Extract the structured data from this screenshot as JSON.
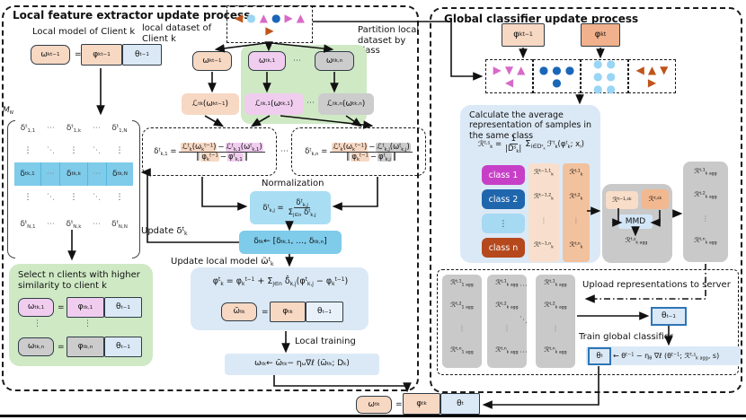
{
  "left_panel": {
    "title": "Local feature extractor update process",
    "local_model": {
      "label": "Local model of Client k",
      "omega": "ω<sub>k</sub><sup>t−1</sup>",
      "equals": "=",
      "phi": "φ<sub>k</sub><sup>t−1</sup>",
      "theta": "θ<sup>t−1</sup>"
    },
    "matrix": {
      "label": "M<sub>N</sub>",
      "rows": [
        [
          "δ<sup>t</sup><sub>1,1</sub>",
          "⋯",
          "δ<sup>t</sup><sub>1,k</sub>",
          "⋯",
          "δ<sup>t</sup><sub>1,N</sub>"
        ],
        [
          "⋮",
          "⋱",
          "⋮",
          "⋱",
          "⋮"
        ],
        [
          "δ<sup>t</sup><sub>k,1</sub>",
          "⋯",
          "δ<sup>t</sup><sub>k,k</sub>",
          "⋯",
          "δ<sup>t</sup><sub>k,N</sub>"
        ],
        [
          "⋮",
          "⋱",
          "⋮",
          "⋱",
          "⋮"
        ],
        [
          "δ<sup>t</sup><sub>N,1</sub>",
          "⋯",
          "δ<sup>t</sup><sub>N,k</sub>",
          "⋯",
          "δ<sup>t</sup><sub>N,N</sub>"
        ]
      ]
    },
    "select_box": {
      "text": "Select n clients with higher similarity to client k",
      "row1": {
        "omega": "ω<sup>t</sup><sub>k,1</sub>",
        "equals": "=",
        "phi": "φ<sup>t</sup><sub>k,1</sub>",
        "theta": "θ<sup>t−1</sup>"
      },
      "dots_a": "⋮",
      "dots_b": "⋮",
      "rown": {
        "omega": "ω<sup>t</sup><sub>k,n</sub>",
        "equals": "=",
        "phi": "φ<sup>t</sup><sub>k,n</sub>",
        "theta": "θ<sup>t−1</sup>"
      }
    },
    "dataset": {
      "label": "local dataset of Client k",
      "shapes": [
        {
          "g": "◀",
          "c": "#c0541a"
        },
        {
          "g": "●",
          "c": "#99d5f5"
        },
        {
          "g": "▲",
          "c": "#d76ac8"
        },
        {
          "g": "●",
          "c": "#1a66b8"
        },
        {
          "g": "▶",
          "c": "#d76ac8"
        },
        {
          "g": "▲",
          "c": "#d76ac8"
        },
        {
          "g": "▶",
          "c": "#c0541a"
        }
      ]
    },
    "partition_label": "Partition local dataset by class",
    "models_row": {
      "omega_k": "ω<sub>k</sub><sup>t−1</sup>",
      "omega_k1": "ω<sup>t</sup><sub>k,1</sub>",
      "dots": "⋯",
      "omega_kn": "ω<sup>t</sup><sub>k,n</sub>"
    },
    "loss_row": {
      "loss_k": "ℒ<sup>t</sup><sub>k</sub>(ω<sub>k</sub><sup>t−1</sup>)",
      "loss_k1": "ℒ<sup>t</sup><sub>k,1</sub>(ω<sup>t</sup><sub>k,1</sub>)",
      "dots": "⋯",
      "loss_kn": "ℒ<sup>t</sup><sub>k,n</sub>(ω<sup>t</sup><sub>k,n</sub>)"
    },
    "delta_box_1": {
      "lhs": "δ<sup>t</sup><sub>k,1</sub> =",
      "num_a": "ℒ<sup>t</sup><sub>k</sub>(ω<sub>k</sub><sup>t−1</sup>)",
      "minus": "−",
      "num_b": "ℒ<sup>t</sup><sub>k,1</sub>(ω<sup>t</sup><sub>k,1</sub>)",
      "den_open": "‖",
      "den_a": "φ<sub>k</sub><sup>t−1</sup>",
      "den_minus": "−",
      "den_b": "φ<sup>t</sup><sub>k,1</sub>",
      "den_close": "‖"
    },
    "delta_dots": "⋯",
    "delta_box_n": {
      "lhs": "δ<sup>t</sup><sub>k,n</sub> =",
      "num_a": "ℒ<sup>t</sup><sub>k</sub>(ω<sub>k</sub><sup>t−1</sup>)",
      "minus": "−",
      "num_b": "ℒ<sup>t</sup><sub>k,j</sub>(ω<sup>t</sup><sub>k,j</sub>)",
      "den_open": "‖",
      "den_a": "φ<sub>k</sub><sup>t−1</sup>",
      "den_minus": "−",
      "den_b": "φ<sup>t</sup><sub>k,j</sub>",
      "den_close": "‖"
    },
    "normalization": {
      "label": "Normalization",
      "lhs": "δ<sup>t</sup><sub>k,j</sub> =",
      "num": "δ<sup>t</sup><sub>k,j</sub>",
      "den": "Σ<sub>j∈n</sub> δ<sup>t</sup><sub>k,j</sub>"
    },
    "update_delta": {
      "label": "Update δ<sup>t</sup><sub>k</sub>",
      "formula": "δ<sup>t</sup><sub>k</sub> ← [δ<sup>t</sup><sub>k,1</sub>, …, δ<sup>t</sup><sub>k,n</sub>]"
    },
    "update_model": {
      "label": "Update local model ω̃<sup>t</sup><sub>k</sub>",
      "formula": "φ<sup>t</sup><sub>k</sub> = φ<sub>k</sub><sup>t−1</sup> + Σ<sub>j∈n</sub> δ̂<sub>k,j</sub>(φ<sup>t</sup><sub>k,j</sub> − φ<sub>k</sub><sup>t−1</sup>)",
      "omega": "ω̃<sup>t</sup><sub>k</sub>",
      "equals": "=",
      "phi": "φ<sup>t</sup><sub>k</sub>",
      "theta": "θ<sup>t−1</sup>"
    },
    "local_training": {
      "label": "Local training",
      "formula": "ω<sup>t</sup><sub>k</sub> ← ω̃<sup>t</sup><sub>k</sub> − η<sub>ω</sub> ∇ℓ (ω̃<sup>t</sup><sub>k</sub>; D<sub>k</sub>)"
    }
  },
  "right_panel": {
    "title": "Global classifier update process",
    "phi_prev": "φ<sub>k</sub><sup>t−1</sup>",
    "phi_t": "φ<sub>k</sub><sup>t</sup>",
    "partition_cells": [
      {
        "shapes": [
          {
            "g": "▶",
            "c": "#d76ac8"
          },
          {
            "g": "▼",
            "c": "#d76ac8"
          },
          {
            "g": "▲",
            "c": "#d76ac8"
          },
          {
            "g": "◀",
            "c": "#d76ac8"
          }
        ]
      },
      {
        "shapes": [
          {
            "g": "●",
            "c": "#1a66b8"
          },
          {
            "g": "●",
            "c": "#1a66b8"
          },
          {
            "g": "●",
            "c": "#1a66b8"
          },
          {
            "g": "●",
            "c": "#1a66b8"
          }
        ]
      },
      {
        "shapes": [
          {
            "g": "●",
            "c": "#99d5f5"
          },
          {
            "g": "●",
            "c": "#99d5f5"
          },
          {
            "g": "●",
            "c": "#99d5f5"
          },
          {
            "g": "●",
            "c": "#99d5f5"
          },
          {
            "g": "●",
            "c": "#99d5f5"
          },
          {
            "g": "●",
            "c": "#99d5f5"
          }
        ]
      },
      {
        "shapes": [
          {
            "g": "◀",
            "c": "#c0541a"
          },
          {
            "g": "▲",
            "c": "#c0541a"
          },
          {
            "g": "▼",
            "c": "#c0541a"
          },
          {
            "g": "▶",
            "c": "#c0541a"
          }
        ]
      }
    ],
    "calc_box": {
      "text": "Calculate the average representation of samples in the same class",
      "f_lhs": "ℛ<sup>t,s</sup><sub>k</sub> =",
      "f_num": "1",
      "f_den": "|D<sup>s</sup><sub>k</sub>|",
      "f_sum": "Σ<sub>i∈D<sup>s</sup><sub>k</sub></sub>",
      "f_rest": "ℱ<sup>t</sup><sub>k</sub>(φ<sup>t</sup><sub>k</sub>; x<sub>i</sub>)",
      "classes": [
        {
          "label": "class 1",
          "c": "#c73fc7",
          "r_prev": "ℛ<sup>t−1,1</sup><sub>k</sub>",
          "r_cur": "ℛ<sup>t,1</sup><sub>k</sub>"
        },
        {
          "label": "class 2",
          "c": "#1f66ad",
          "r_prev": "ℛ<sup>t−1,2</sup><sub>k</sub>",
          "r_cur": "ℛ<sup>t,2</sup><sub>k</sub>"
        },
        {
          "label": "⋮",
          "c": "#a6d9f2",
          "r_prev": "⋮",
          "r_cur": "⋮"
        },
        {
          "label": "class n",
          "c": "#b5491d",
          "r_prev": "ℛ<sup>t−1,n</sup><sub>k</sub>",
          "r_cur": "ℛ<sup>t,n</sup><sub>k</sub>"
        }
      ]
    },
    "mmd_box": {
      "r_prev": "ℛ<sup>t−1,s</sup><sub>k</sub>",
      "r_cur": "ℛ<sup>t,s</sup><sub>k</sub>",
      "mmd": "MMD",
      "r_agg": "ℛ<sup>t,s</sup><sub>k agg</sub>"
    },
    "agg_column": [
      "ℛ<sup>t,1</sup><sub>k agg</sub>",
      "ℛ<sup>t,2</sup><sub>k agg</sub>",
      "⋮",
      "ℛ<sup>t,n</sup><sub>k agg</sub>"
    ],
    "server_box": {
      "col1": [
        "ℛ<sup>t,1</sup><sub>1 agg</sub>",
        "ℛ<sup>t,2</sup><sub>1 agg</sub>",
        "⋮",
        "ℛ<sup>t,n</sup><sub>1 agg</sub>"
      ],
      "col2": [
        "ℛ<sup>t,1</sup><sub>k agg</sub>",
        "ℛ<sup>t,2</sup><sub>k agg</sub>",
        "⋮",
        "ℛ<sup>t,n</sup><sub>k agg</sub>"
      ],
      "col3": [
        "ℛ<sup>t,1</sup><sub>k agg</sub>",
        "ℛ<sup>t,2</sup><sub>k agg</sub>",
        "⋮",
        "ℛ<sup>t,n</sup><sub>k agg</sub>"
      ],
      "dots_top": "⋯",
      "dots_mid": "⋱",
      "dots_bot": "⋯",
      "upload_label": "Upload representations to server",
      "theta_prev": "θ<sup>t−1</sup>",
      "train_label": "Train global classifier",
      "theta_t": "θ<sup>t</sup>",
      "train_formula": "← θ<sup>t−1</sup> − η<sub>θ</sub> ∇ℓ (θ<sup>t−1</sup>; ℛ<sup>t,s</sup><sub>k agg</sub>, s)"
    }
  },
  "bottom_result": {
    "omega": "ω<sup>t</sup><sub>k</sub>",
    "equals": "=",
    "phi": "φ<sup>t</sup><sub>k</sub>",
    "theta": "θ<sup>t</sup>"
  }
}
